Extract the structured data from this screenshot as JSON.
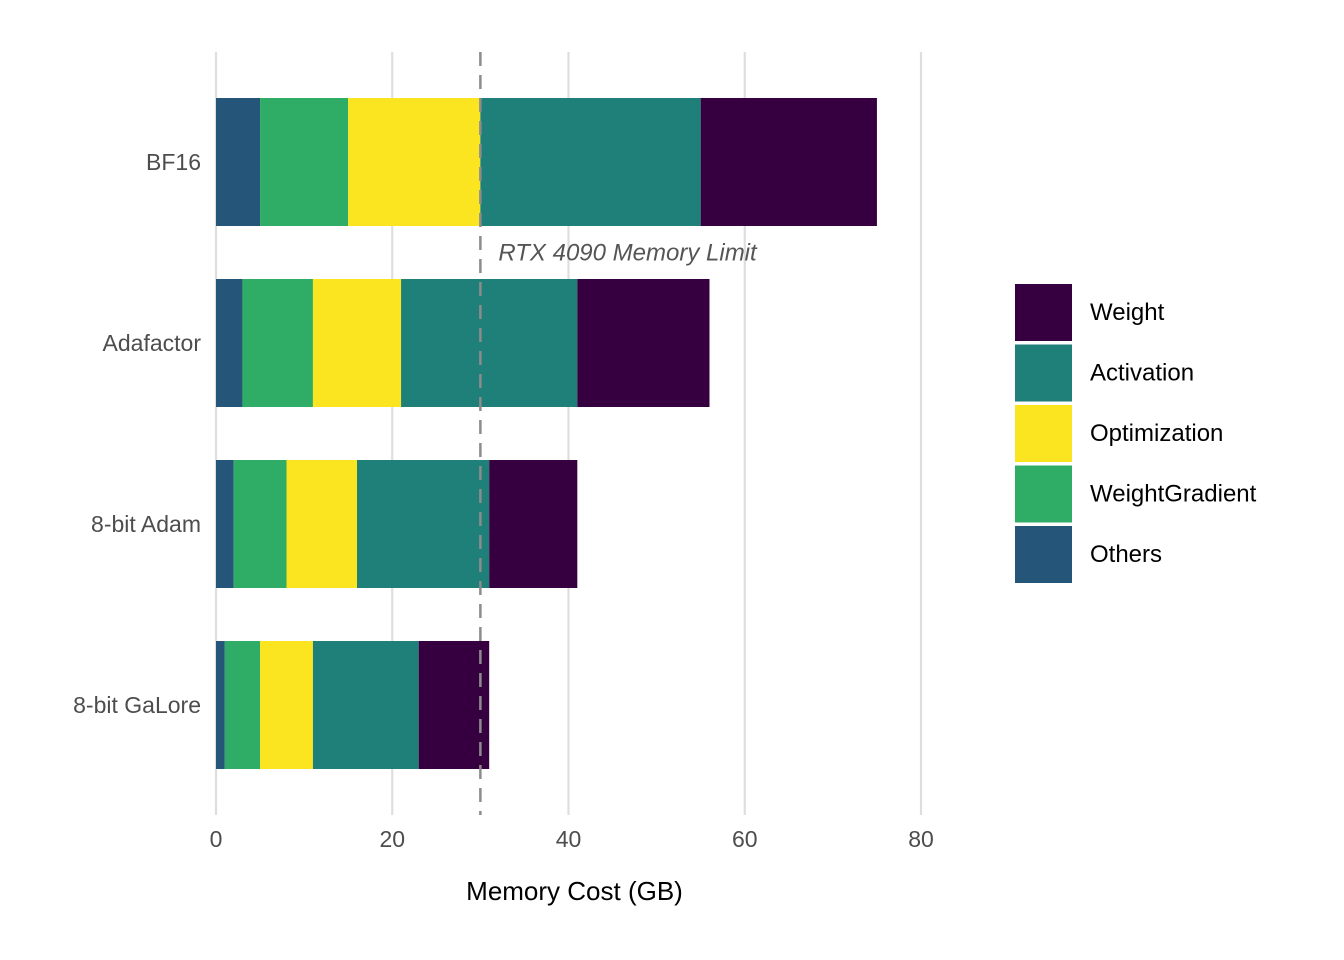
{
  "chart_data": {
    "type": "bar",
    "orientation": "horizontal",
    "stacked": true,
    "categories": [
      "BF16",
      "Adafactor",
      "8-bit Adam",
      "8-bit GaLore"
    ],
    "stack_order": [
      "Others",
      "WeightGradient",
      "Optimization",
      "Activation",
      "Weight"
    ],
    "series": [
      {
        "name": "Others",
        "values": [
          5,
          3,
          2,
          1
        ],
        "color": "#26557a"
      },
      {
        "name": "WeightGradient",
        "values": [
          10,
          8,
          6,
          4
        ],
        "color": "#2fac66"
      },
      {
        "name": "Optimization",
        "values": [
          15,
          10,
          8,
          6
        ],
        "color": "#fbe420"
      },
      {
        "name": "Activation",
        "values": [
          25,
          20,
          15,
          12
        ],
        "color": "#1f7f79"
      },
      {
        "name": "Weight",
        "values": [
          20,
          15,
          10,
          8
        ],
        "color": "#360040"
      }
    ],
    "legend_order": [
      "Weight",
      "Activation",
      "Optimization",
      "WeightGradient",
      "Others"
    ],
    "xlabel": "Memory Cost (GB)",
    "ylabel": "",
    "xlim": [
      0,
      80
    ],
    "x_ticks": [
      0,
      20,
      40,
      60,
      80
    ],
    "grid": "vertical major",
    "legend_position": "right",
    "reference_line": {
      "value": 30,
      "label": "RTX 4090 Memory Limit",
      "style": "dashed",
      "color": "#8c8c8c"
    }
  }
}
